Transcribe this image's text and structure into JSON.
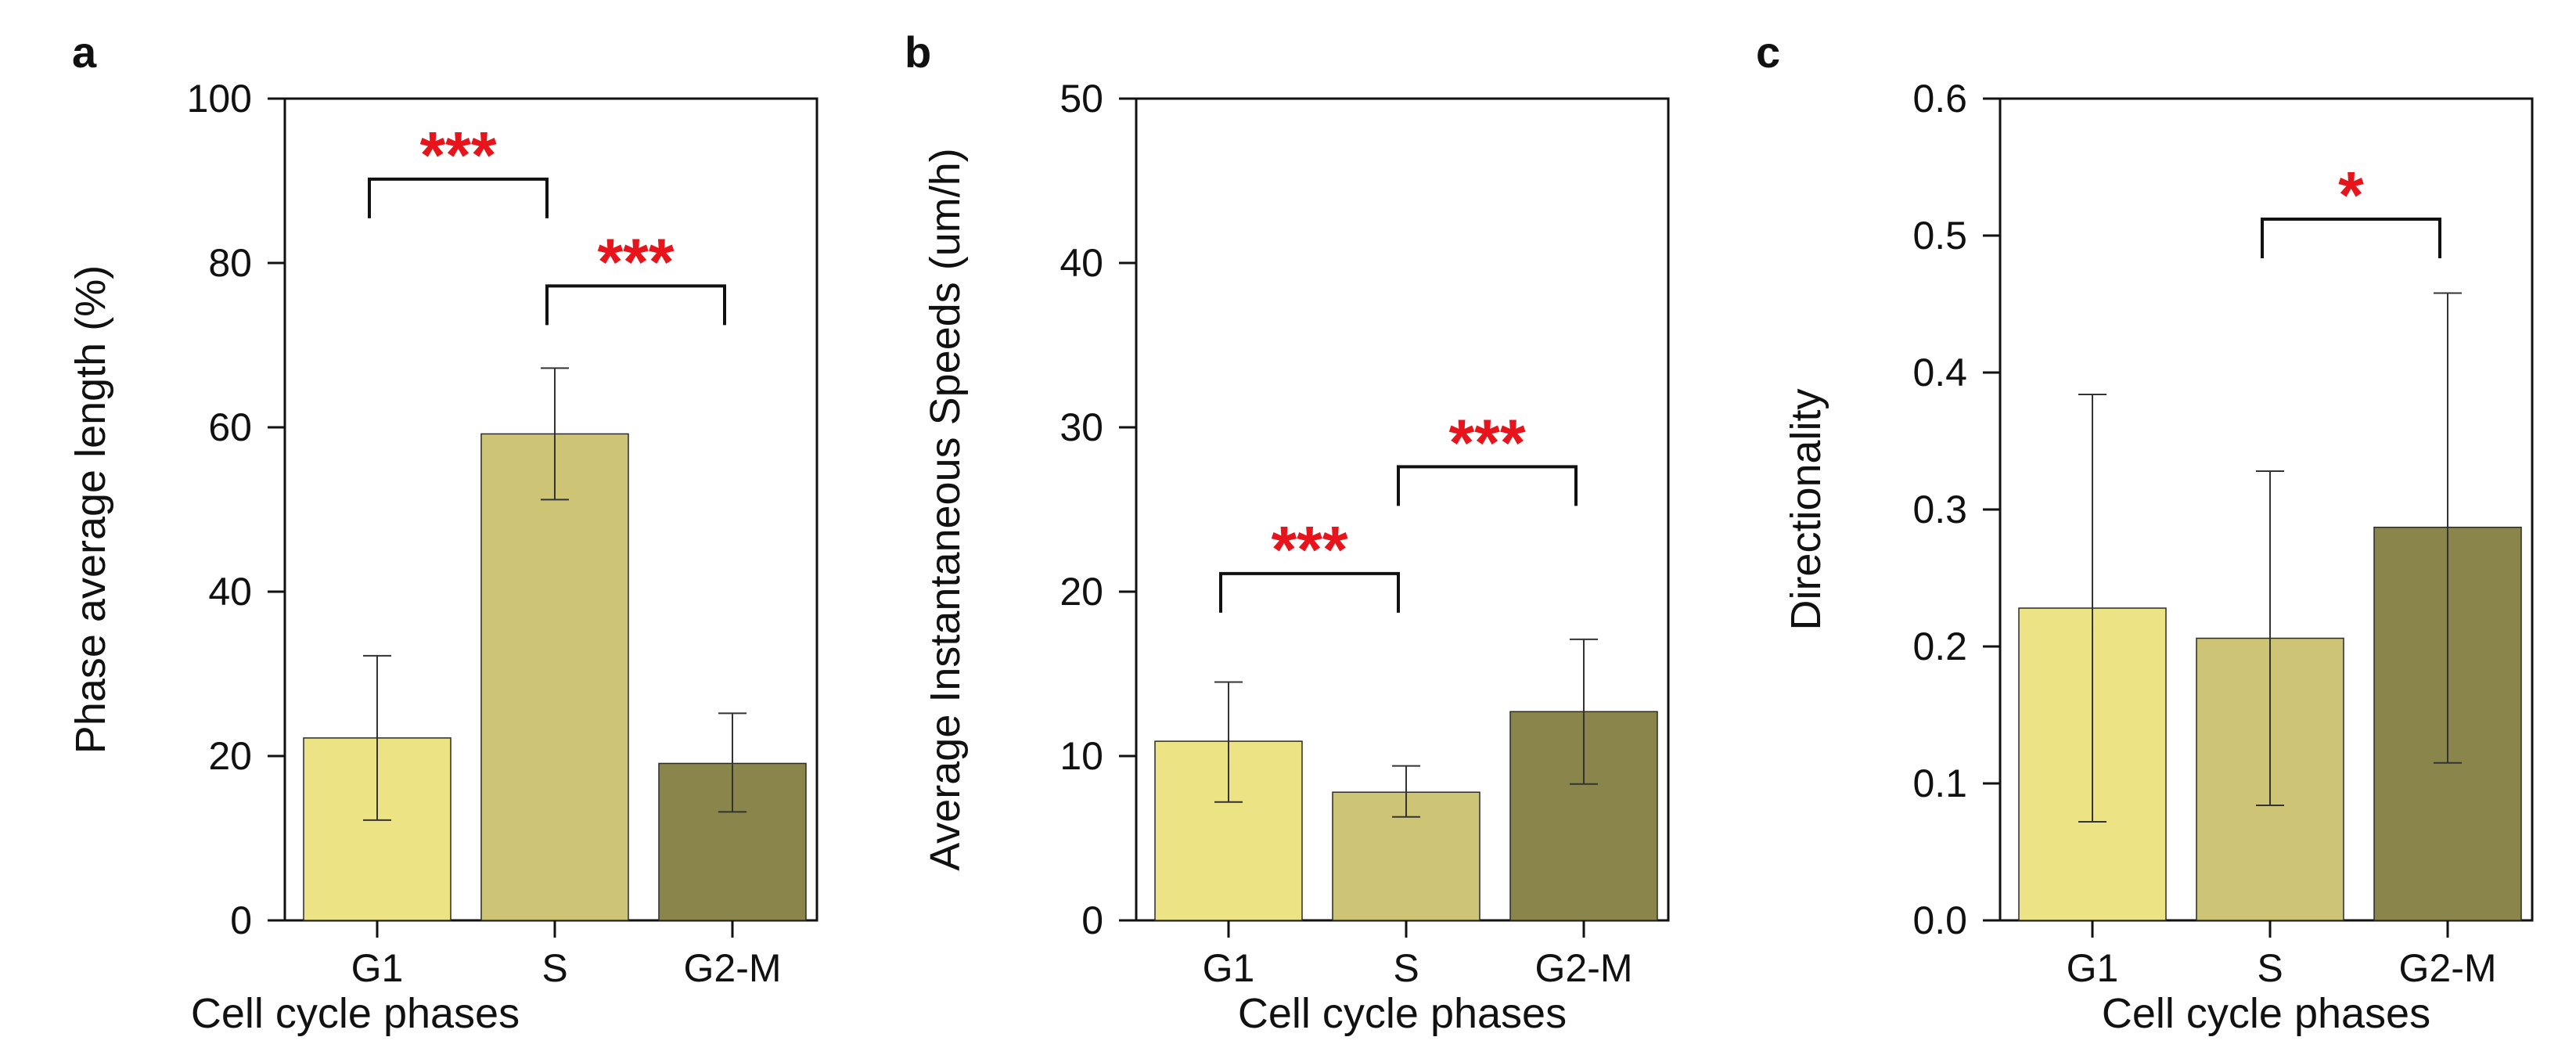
{
  "colors": {
    "G1": "#ebe384",
    "S": "#cdc476",
    "G2-M": "#8a864b",
    "stars": "#e8141b",
    "ink": "#111111"
  },
  "chart_data": [
    {
      "type": "bar",
      "panel": "a",
      "categories": [
        "G1",
        "S",
        "G2-M"
      ],
      "values": [
        22.2,
        59.2,
        19.1
      ],
      "error_low": [
        12.2,
        51.2,
        13.2
      ],
      "error_high": [
        32.2,
        67.2,
        25.2
      ],
      "xlabel": "Cell cycle phases",
      "ylabel": "Phase average length (%)",
      "ylim": [
        0,
        100
      ],
      "yticks": [
        0,
        20,
        40,
        60,
        80,
        100
      ],
      "tick_labels": [
        "0",
        "20",
        "40",
        "60",
        "80",
        "100"
      ],
      "significance": [
        {
          "from": 0,
          "to": 1,
          "label": "***",
          "level": 90.2
        },
        {
          "from": 1,
          "to": 2,
          "label": "***",
          "level": 77.2
        }
      ]
    },
    {
      "type": "bar",
      "panel": "b",
      "categories": [
        "G1",
        "S",
        "G2-M"
      ],
      "values": [
        10.9,
        7.8,
        12.7
      ],
      "error_low": [
        7.2,
        6.3,
        8.3
      ],
      "error_high": [
        14.5,
        9.4,
        17.1
      ],
      "xlabel": "Cell cycle phases",
      "ylabel": "Average Instantaneous Speeds (um/h)",
      "ylim": [
        0,
        50
      ],
      "yticks": [
        0,
        10,
        20,
        30,
        40,
        50
      ],
      "tick_labels": [
        "0",
        "10",
        "20",
        "30",
        "40",
        "50"
      ],
      "significance": [
        {
          "from": 0,
          "to": 1,
          "label": "***",
          "level": 21.1
        },
        {
          "from": 1,
          "to": 2,
          "label": "***",
          "level": 27.6
        }
      ]
    },
    {
      "type": "bar",
      "panel": "c",
      "categories": [
        "G1",
        "S",
        "G2-M"
      ],
      "values": [
        0.228,
        0.206,
        0.287
      ],
      "error_low": [
        0.072,
        0.084,
        0.115
      ],
      "error_high": [
        0.384,
        0.328,
        0.458
      ],
      "xlabel": "Cell cycle phases",
      "ylabel": "Directionality",
      "ylim": [
        0,
        0.6
      ],
      "yticks": [
        0,
        0.1,
        0.2,
        0.3,
        0.4,
        0.5,
        0.6
      ],
      "tick_labels": [
        "0.0",
        "0.1",
        "0.2",
        "0.3",
        "0.4",
        "0.5",
        "0.6"
      ],
      "significance": [
        {
          "from": 1,
          "to": 2,
          "label": "*",
          "level": 0.512
        }
      ]
    }
  ]
}
